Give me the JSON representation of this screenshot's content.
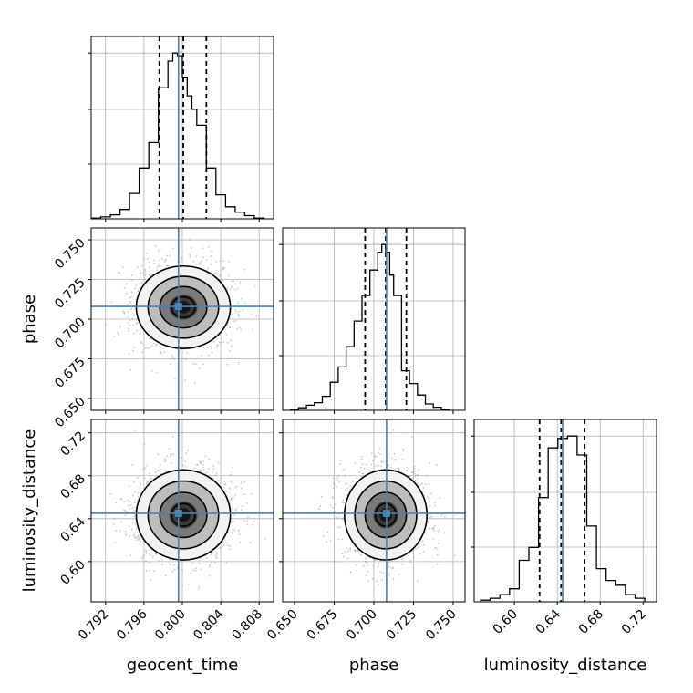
{
  "chart_data": {
    "type": "corner",
    "parameters": [
      {
        "name": "geocent_time",
        "label": "geocent_time",
        "range": [
          0.7905,
          0.8095
        ],
        "ticks": [
          "0.792",
          "0.796",
          "0.800",
          "0.804",
          "0.808"
        ],
        "tick_values": [
          0.792,
          0.796,
          0.8,
          0.804,
          0.808
        ],
        "truth": 0.7996,
        "quantiles": [
          0.7976,
          0.8001,
          0.8025
        ],
        "hist_edges": [
          0.7905,
          0.7915,
          0.7925,
          0.7935,
          0.7945,
          0.7955,
          0.7965,
          0.7975,
          0.7985,
          0.799,
          0.7995,
          0.8,
          0.8005,
          0.801,
          0.8015,
          0.8025,
          0.8035,
          0.8045,
          0.8055,
          0.8065,
          0.8075,
          0.8085
        ],
        "hist_counts": [
          0.3,
          0.7,
          1.5,
          3.5,
          9.5,
          19.0,
          28.5,
          49.0,
          59.0,
          62.0,
          61.0,
          53.0,
          46.0,
          41.0,
          35.0,
          19.0,
          9.0,
          4.5,
          2.5,
          1.2,
          0.3
        ]
      },
      {
        "name": "phase",
        "label": "phase",
        "range": [
          0.6425,
          0.7575
        ],
        "ticks": [
          "0.650",
          "0.675",
          "0.700",
          "0.725",
          "0.750"
        ],
        "tick_values": [
          0.65,
          0.675,
          0.7,
          0.725,
          0.75
        ],
        "truth": 0.708,
        "quantiles": [
          0.6945,
          0.7075,
          0.7205
        ],
        "hist_edges": [
          0.6475,
          0.6525,
          0.6575,
          0.6625,
          0.6675,
          0.6725,
          0.6775,
          0.6825,
          0.6875,
          0.6925,
          0.6975,
          0.7025,
          0.705,
          0.7075,
          0.71,
          0.7125,
          0.7175,
          0.7225,
          0.7275,
          0.7325,
          0.7375,
          0.7425,
          0.7475
        ],
        "hist_counts": [
          0.4,
          1.0,
          2.0,
          3.0,
          5.5,
          11.0,
          17.0,
          25.0,
          35.0,
          45.0,
          55.0,
          62.0,
          65.0,
          62.0,
          53.0,
          45.0,
          15.5,
          10.5,
          6.0,
          2.5,
          1.2,
          0.3
        ]
      },
      {
        "name": "luminosity_distance",
        "label": "luminosity_distance",
        "range": [
          0.5625,
          0.7325
        ],
        "ticks": [
          "0.60",
          "0.64",
          "0.68",
          "0.72"
        ],
        "tick_values": [
          0.6,
          0.64,
          0.68,
          0.72
        ],
        "truth": 0.645,
        "quantiles": [
          0.6235,
          0.6435,
          0.6655
        ],
        "hist_edges": [
          0.5685,
          0.5775,
          0.5865,
          0.5955,
          0.6045,
          0.6135,
          0.6225,
          0.6315,
          0.6405,
          0.6495,
          0.6585,
          0.6675,
          0.6765,
          0.6855,
          0.6945,
          0.7035,
          0.7125,
          0.7215
        ],
        "hist_counts": [
          0.7,
          1.5,
          3.0,
          5.5,
          17.5,
          23.0,
          44.0,
          65.0,
          69.0,
          70.0,
          62.0,
          32.0,
          14.0,
          9.0,
          7.0,
          3.0,
          1.5
        ]
      }
    ],
    "posterior_2d": {
      "correlation": 0.0,
      "levels_sigma": [
        0.5,
        1.0,
        1.5,
        2.0
      ]
    },
    "colors": {
      "truth": "#4682b4",
      "hist": "#000000",
      "quantile": "#000000",
      "grid": "#b0b0b0",
      "points": "#9a9a9a"
    },
    "grid": true
  }
}
